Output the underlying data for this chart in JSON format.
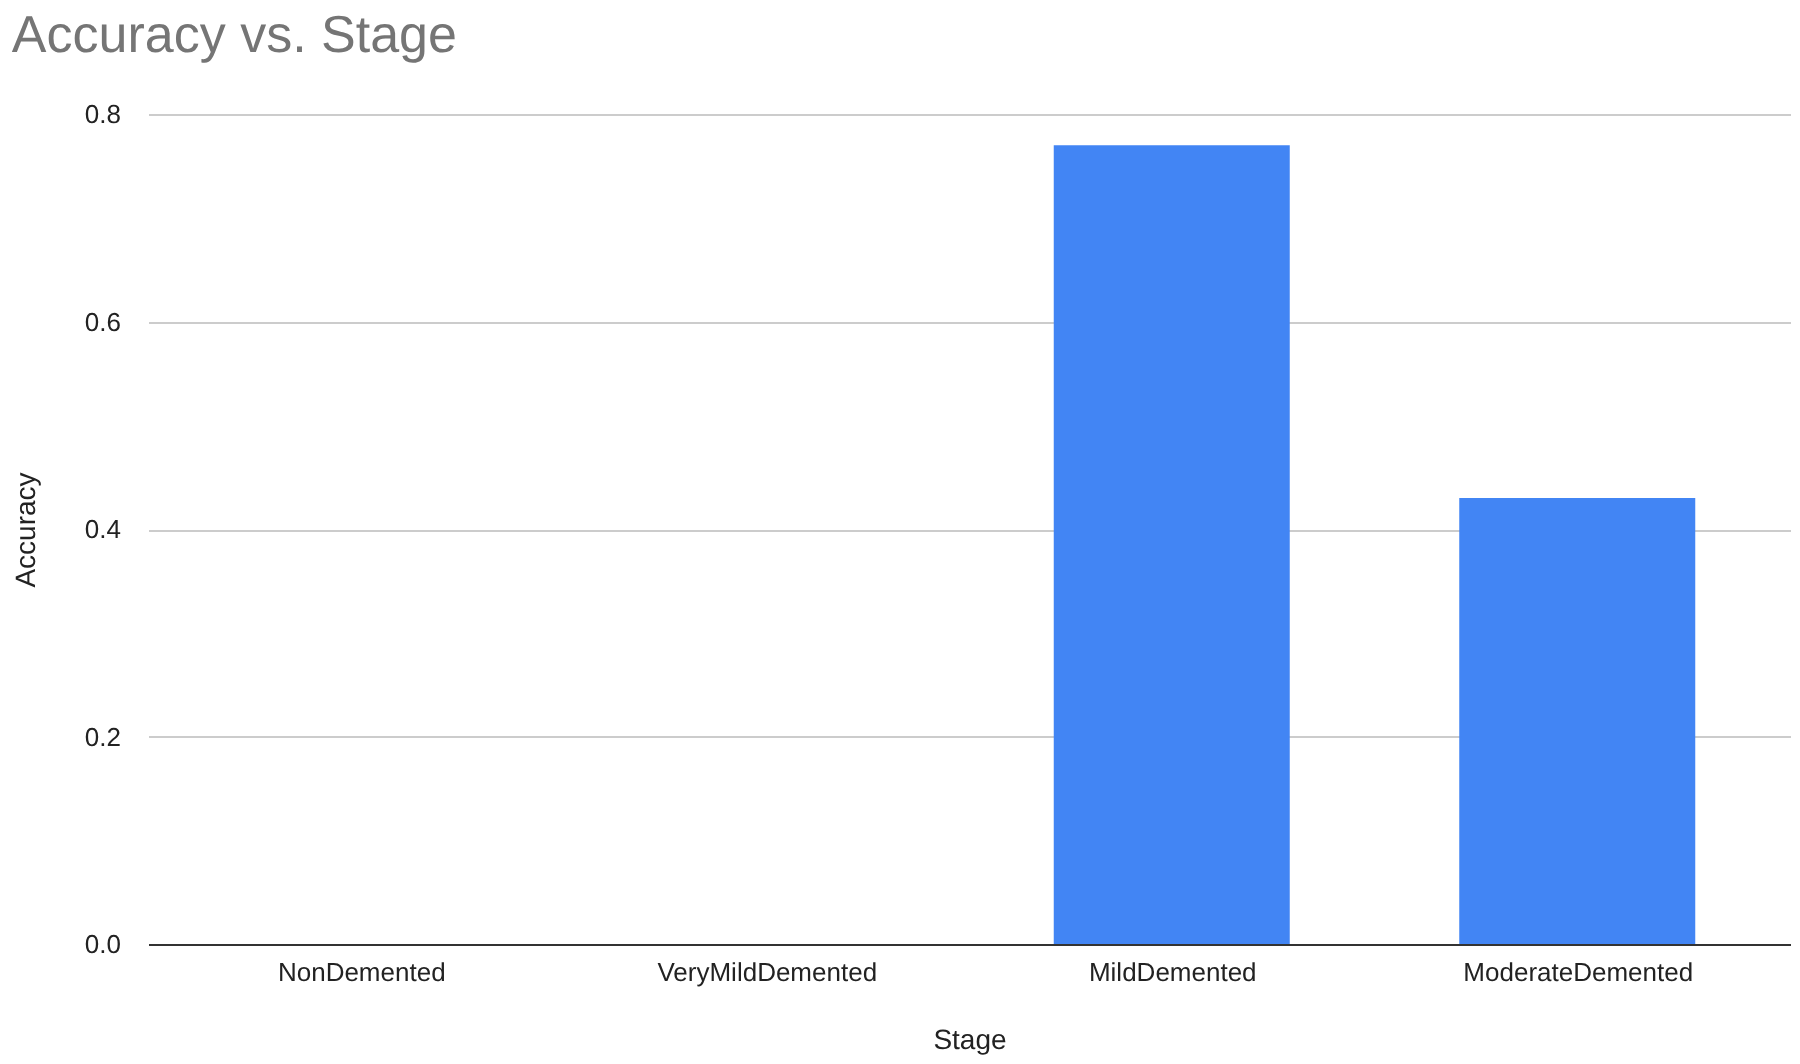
{
  "chart_data": {
    "type": "bar",
    "title": "Accuracy vs. Stage",
    "xlabel": "Stage",
    "ylabel": "Accuracy",
    "categories": [
      "NonDemented",
      "VeryMildDemented",
      "MildDemented",
      "ModerateDemented"
    ],
    "values": [
      0,
      0,
      0.77,
      0.43
    ],
    "color": "#4285f4",
    "ylim": [
      0,
      0.8
    ],
    "yticks": [
      {
        "value": 0,
        "label": "0.0"
      },
      {
        "value": 0.2,
        "label": "0.2"
      },
      {
        "value": 0.4,
        "label": "0.4"
      },
      {
        "value": 0.6,
        "label": "0.6"
      },
      {
        "value": 0.8,
        "label": "0.8"
      }
    ],
    "grid": "y"
  }
}
